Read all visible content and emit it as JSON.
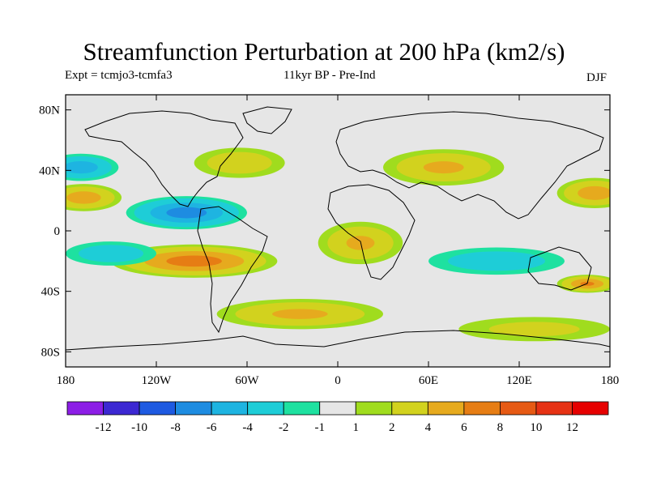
{
  "title": "Streamfunction Perturbation at 200 hPa (km2/s)",
  "subtitle_left": "Expt = tcmjo3-tcmfa3",
  "subtitle_center": "11kyr BP - Pre-Ind",
  "season": "DJF",
  "map": {
    "lon_ticks": [
      "180",
      "120W",
      "60W",
      "0",
      "60E",
      "120E",
      "180"
    ],
    "lat_ticks": [
      "80N",
      "40N",
      "0",
      "40S",
      "80S"
    ],
    "background_color": "#e6e6e6",
    "anomaly_fields": [
      {
        "name": "north-pacific-low",
        "lon": -170,
        "lat": 42,
        "value": -5,
        "rx_deg": 25,
        "ry_deg": 9
      },
      {
        "name": "north-pacific-high",
        "lon": -168,
        "lat": 22,
        "value": 5,
        "rx_deg": 25,
        "ry_deg": 9
      },
      {
        "name": "north-atlantic-high",
        "lon": -65,
        "lat": 45,
        "value": 3,
        "rx_deg": 30,
        "ry_deg": 10
      },
      {
        "name": "caribbean-low",
        "lon": -100,
        "lat": 12,
        "value": -7,
        "rx_deg": 40,
        "ry_deg": 11
      },
      {
        "name": "south-pacific-high",
        "lon": -95,
        "lat": -20,
        "value": 7,
        "rx_deg": 55,
        "ry_deg": 11
      },
      {
        "name": "south-pacific-low",
        "lon": -150,
        "lat": -15,
        "value": -3,
        "rx_deg": 30,
        "ry_deg": 8
      },
      {
        "name": "southern-ocean-high",
        "lon": -25,
        "lat": -55,
        "value": 4,
        "rx_deg": 55,
        "ry_deg": 10
      },
      {
        "name": "africa-high",
        "lon": 15,
        "lat": -8,
        "value": 4,
        "rx_deg": 28,
        "ry_deg": 14
      },
      {
        "name": "west-asia-high",
        "lon": 70,
        "lat": 42,
        "value": 4,
        "rx_deg": 40,
        "ry_deg": 12
      },
      {
        "name": "indian-ocean-low",
        "lon": 105,
        "lat": -20,
        "value": -3,
        "rx_deg": 45,
        "ry_deg": 9
      },
      {
        "name": "east-pacific-high-n",
        "lon": 170,
        "lat": 25,
        "value": 5,
        "rx_deg": 25,
        "ry_deg": 10
      },
      {
        "name": "east-pacific-high-s",
        "lon": 165,
        "lat": -35,
        "value": 6,
        "rx_deg": 20,
        "ry_deg": 6
      },
      {
        "name": "antarctic-high",
        "lon": 130,
        "lat": -65,
        "value": 2,
        "rx_deg": 50,
        "ry_deg": 8
      }
    ]
  },
  "colorbar": {
    "labels": [
      "-12",
      "-10",
      "-8",
      "-6",
      "-4",
      "-2",
      "-1",
      "1",
      "2",
      "4",
      "6",
      "8",
      "10",
      "12"
    ],
    "colors": [
      "#8c1ee6",
      "#3c28d2",
      "#1e5ae1",
      "#1e8ce1",
      "#1eb4e1",
      "#1ecdd7",
      "#1ee1a0",
      "#e6e6e6",
      "#a0dc1e",
      "#d2d21e",
      "#e6aa1e",
      "#e67d14",
      "#e65a14",
      "#e63214",
      "#e60000"
    ]
  }
}
